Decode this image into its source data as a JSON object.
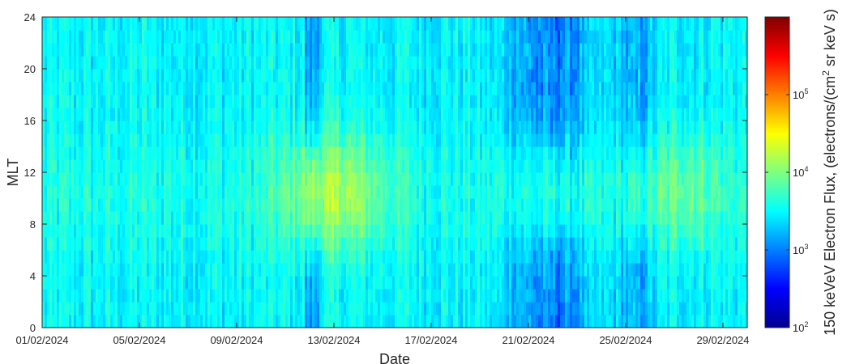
{
  "chart_data": {
    "type": "heatmap",
    "xlabel": "Date",
    "ylabel": "MLT",
    "x_tick_labels": [
      "01/02/2024",
      "05/02/2024",
      "09/02/2024",
      "13/02/2024",
      "17/02/2024",
      "21/02/2024",
      "25/02/2024",
      "29/02/2024"
    ],
    "x_range": [
      "01/02/2024",
      "01/03/2024"
    ],
    "y_ticks": [
      0,
      4,
      8,
      12,
      16,
      20,
      24
    ],
    "ylim": [
      0,
      24
    ],
    "colorbar": {
      "label": "150 keVeV Electron Flux, (electrons/(cm",
      "label_sup": "2",
      "label_end": " sr keV s)",
      "scale": "log",
      "range": [
        100,
        1000000
      ],
      "colormap": "jet",
      "ticks": [
        {
          "base": "10",
          "exp": "2",
          "value": 100
        },
        {
          "base": "10",
          "exp": "3",
          "value": 1000
        },
        {
          "base": "10",
          "exp": "4",
          "value": 10000
        },
        {
          "base": "10",
          "exp": "5",
          "value": 100000
        }
      ]
    },
    "grid": false,
    "typical_values": {
      "background_flux": 3000,
      "enhanced_flux_dayside_mid_february": 10000,
      "depleted_flux_nightside_around_21_02": 800
    }
  }
}
